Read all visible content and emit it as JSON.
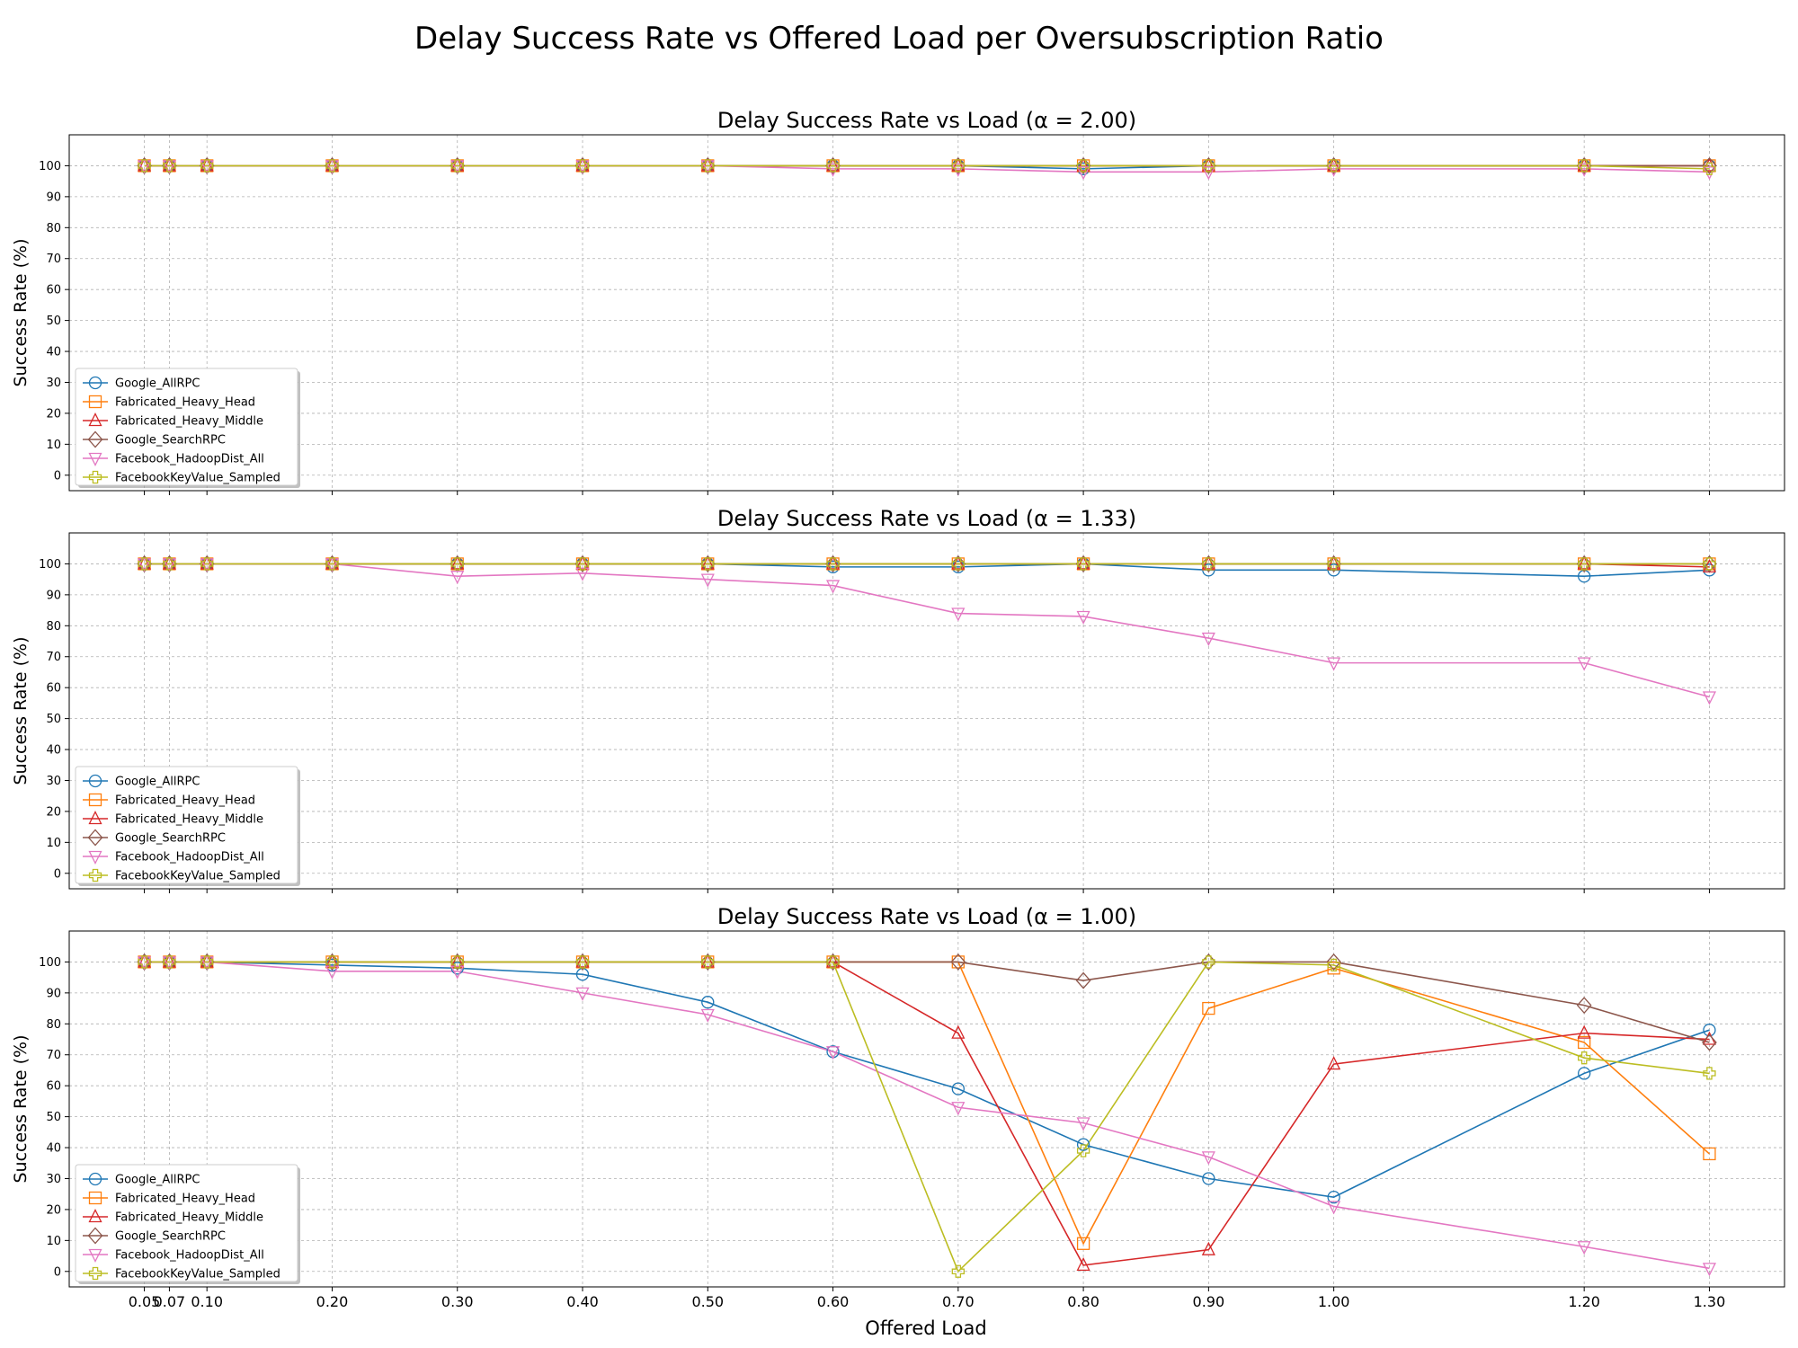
{
  "figure": {
    "suptitle": "Delay Success Rate vs Offered Load per Oversubscription Ratio",
    "xlabel": "Offered Load"
  },
  "chart_data": [
    {
      "type": "line",
      "title": "Delay Success Rate vs Load (α = 2.00)",
      "xlabel": "",
      "ylabel": "Success Rate (%)",
      "x": [
        0.05,
        0.07,
        0.1,
        0.2,
        0.3,
        0.4,
        0.5,
        0.6,
        0.7,
        0.8,
        0.9,
        1.0,
        1.2,
        1.3
      ],
      "x_tick_labels": [
        "0.05",
        "0.07",
        "0.10",
        "0.20",
        "0.30",
        "0.40",
        "0.50",
        "0.60",
        "0.70",
        "0.80",
        "0.90",
        "1.00",
        "1.20",
        "1.30"
      ],
      "xlim": [
        -0.01,
        1.36
      ],
      "ylim": [
        -5,
        110
      ],
      "y_ticks": [
        0,
        10,
        20,
        30,
        40,
        50,
        60,
        70,
        80,
        90,
        100
      ],
      "grid": true,
      "legend_position": "lower-left",
      "series": [
        {
          "name": "Google_AllRPC",
          "color": "#1f77b4",
          "marker": "circle",
          "values": [
            100,
            100,
            100,
            100,
            100,
            100,
            100,
            100,
            100,
            99,
            100,
            100,
            100,
            100
          ]
        },
        {
          "name": "Fabricated_Heavy_Head",
          "color": "#ff7f0e",
          "marker": "square",
          "values": [
            100,
            100,
            100,
            100,
            100,
            100,
            100,
            100,
            100,
            100,
            100,
            100,
            100,
            100
          ]
        },
        {
          "name": "Fabricated_Heavy_Middle",
          "color": "#d62728",
          "marker": "triangle-up",
          "values": [
            100,
            100,
            100,
            100,
            100,
            100,
            100,
            100,
            100,
            100,
            100,
            100,
            100,
            100
          ]
        },
        {
          "name": "Google_SearchRPC",
          "color": "#8c564b",
          "marker": "diamond",
          "values": [
            100,
            100,
            100,
            100,
            100,
            100,
            100,
            100,
            100,
            100,
            100,
            100,
            100,
            100
          ]
        },
        {
          "name": "Facebook_HadoopDist_All",
          "color": "#e377c2",
          "marker": "triangle-down",
          "values": [
            100,
            100,
            100,
            100,
            100,
            100,
            100,
            99,
            99,
            98,
            98,
            99,
            99,
            98
          ]
        },
        {
          "name": "FacebookKeyValue_Sampled",
          "color": "#bcbd22",
          "marker": "plus",
          "values": [
            100,
            100,
            100,
            100,
            100,
            100,
            100,
            100,
            100,
            100,
            100,
            100,
            100,
            99
          ]
        }
      ]
    },
    {
      "type": "line",
      "title": "Delay Success Rate vs Load (α = 1.33)",
      "xlabel": "",
      "ylabel": "Success Rate (%)",
      "x": [
        0.05,
        0.07,
        0.1,
        0.2,
        0.3,
        0.4,
        0.5,
        0.6,
        0.7,
        0.8,
        0.9,
        1.0,
        1.2,
        1.3
      ],
      "x_tick_labels": [
        "0.05",
        "0.07",
        "0.10",
        "0.20",
        "0.30",
        "0.40",
        "0.50",
        "0.60",
        "0.70",
        "0.80",
        "0.90",
        "1.00",
        "1.20",
        "1.30"
      ],
      "xlim": [
        -0.01,
        1.36
      ],
      "ylim": [
        -5,
        110
      ],
      "y_ticks": [
        0,
        10,
        20,
        30,
        40,
        50,
        60,
        70,
        80,
        90,
        100
      ],
      "grid": true,
      "legend_position": "lower-left",
      "series": [
        {
          "name": "Google_AllRPC",
          "color": "#1f77b4",
          "marker": "circle",
          "values": [
            100,
            100,
            100,
            100,
            100,
            100,
            100,
            99,
            99,
            100,
            98,
            98,
            96,
            98
          ]
        },
        {
          "name": "Fabricated_Heavy_Head",
          "color": "#ff7f0e",
          "marker": "square",
          "values": [
            100,
            100,
            100,
            100,
            100,
            100,
            100,
            100,
            100,
            100,
            100,
            100,
            100,
            100
          ]
        },
        {
          "name": "Fabricated_Heavy_Middle",
          "color": "#d62728",
          "marker": "triangle-up",
          "values": [
            100,
            100,
            100,
            100,
            100,
            100,
            100,
            100,
            100,
            100,
            100,
            100,
            100,
            99
          ]
        },
        {
          "name": "Google_SearchRPC",
          "color": "#8c564b",
          "marker": "diamond",
          "values": [
            100,
            100,
            100,
            100,
            100,
            100,
            100,
            100,
            100,
            100,
            100,
            100,
            100,
            100
          ]
        },
        {
          "name": "Facebook_HadoopDist_All",
          "color": "#e377c2",
          "marker": "triangle-down",
          "values": [
            100,
            100,
            100,
            100,
            96,
            97,
            95,
            93,
            84,
            83,
            76,
            68,
            68,
            57
          ]
        },
        {
          "name": "FacebookKeyValue_Sampled",
          "color": "#bcbd22",
          "marker": "plus",
          "values": [
            100,
            100,
            100,
            100,
            100,
            100,
            100,
            100,
            100,
            100,
            100,
            100,
            100,
            100
          ]
        }
      ]
    },
    {
      "type": "line",
      "title": "Delay Success Rate vs Load (α = 1.00)",
      "xlabel": "Offered Load",
      "ylabel": "Success Rate (%)",
      "x": [
        0.05,
        0.07,
        0.1,
        0.2,
        0.3,
        0.4,
        0.5,
        0.6,
        0.7,
        0.8,
        0.9,
        1.0,
        1.2,
        1.3
      ],
      "x_tick_labels": [
        "0.05",
        "0.07",
        "0.10",
        "0.20",
        "0.30",
        "0.40",
        "0.50",
        "0.60",
        "0.70",
        "0.80",
        "0.90",
        "1.00",
        "1.20",
        "1.30"
      ],
      "xlim": [
        -0.01,
        1.36
      ],
      "ylim": [
        -5,
        110
      ],
      "y_ticks": [
        0,
        10,
        20,
        30,
        40,
        50,
        60,
        70,
        80,
        90,
        100
      ],
      "grid": true,
      "legend_position": "lower-left",
      "series": [
        {
          "name": "Google_AllRPC",
          "color": "#1f77b4",
          "marker": "circle",
          "values": [
            100,
            100,
            100,
            99,
            98,
            96,
            87,
            71,
            59,
            41,
            30,
            24,
            64,
            78
          ]
        },
        {
          "name": "Fabricated_Heavy_Head",
          "color": "#ff7f0e",
          "marker": "square",
          "values": [
            100,
            100,
            100,
            100,
            100,
            100,
            100,
            100,
            100,
            9,
            85,
            98,
            74,
            38
          ]
        },
        {
          "name": "Fabricated_Heavy_Middle",
          "color": "#d62728",
          "marker": "triangle-up",
          "values": [
            100,
            100,
            100,
            100,
            100,
            100,
            100,
            100,
            77,
            2,
            7,
            67,
            77,
            75
          ]
        },
        {
          "name": "Google_SearchRPC",
          "color": "#8c564b",
          "marker": "diamond",
          "values": [
            100,
            100,
            100,
            100,
            100,
            100,
            100,
            100,
            100,
            94,
            100,
            100,
            86,
            74
          ]
        },
        {
          "name": "Facebook_HadoopDist_All",
          "color": "#e377c2",
          "marker": "triangle-down",
          "values": [
            100,
            100,
            100,
            97,
            97,
            90,
            83,
            71,
            53,
            48,
            37,
            21,
            8,
            1
          ]
        },
        {
          "name": "FacebookKeyValue_Sampled",
          "color": "#bcbd22",
          "marker": "plus",
          "values": [
            100,
            100,
            100,
            100,
            100,
            100,
            100,
            100,
            0,
            39,
            100,
            99,
            69,
            64
          ]
        }
      ]
    }
  ]
}
